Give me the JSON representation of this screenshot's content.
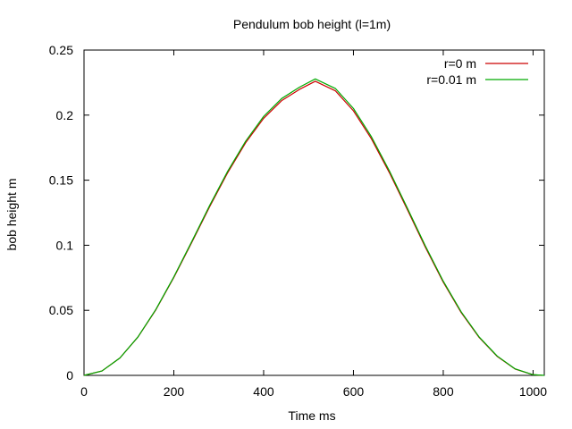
{
  "chart_data": {
    "type": "line",
    "title": "Pendulum bob height (l=1m)",
    "xlabel": "Time ms",
    "ylabel": "bob height m",
    "xlim": [
      0,
      1025
    ],
    "ylim": [
      0,
      0.25
    ],
    "x_ticks": [
      0,
      200,
      400,
      600,
      800,
      1000
    ],
    "y_ticks": [
      0,
      0.05,
      0.1,
      0.15,
      0.2,
      0.25
    ],
    "y_tick_labels": [
      "0",
      "0.05",
      "0.1",
      "0.15",
      "0.2",
      "0.25"
    ],
    "grid": false,
    "legend_position": "top-right",
    "series": [
      {
        "name": "r=0 m",
        "color": "#cc0000",
        "x": [
          0,
          40,
          80,
          120,
          160,
          200,
          240,
          280,
          320,
          360,
          400,
          440,
          480,
          515,
          560,
          600,
          640,
          680,
          720,
          760,
          800,
          840,
          880,
          920,
          960,
          1000,
          1020
        ],
        "y": [
          0,
          0.0034,
          0.0134,
          0.0294,
          0.0504,
          0.0752,
          0.1022,
          0.1297,
          0.1558,
          0.1788,
          0.1975,
          0.2111,
          0.2198,
          0.226,
          0.2186,
          0.2033,
          0.1818,
          0.1558,
          0.1274,
          0.0986,
          0.0716,
          0.0482,
          0.0291,
          0.0146,
          0.0049,
          0.0005,
          0
        ]
      },
      {
        "name": "r=0.01 m",
        "color": "#00aa00",
        "x": [
          0,
          40,
          80,
          120,
          160,
          200,
          240,
          280,
          320,
          360,
          400,
          440,
          480,
          515,
          560,
          600,
          640,
          680,
          720,
          760,
          800,
          840,
          880,
          920,
          960,
          1000,
          1025
        ],
        "y": [
          0,
          0.0034,
          0.0134,
          0.0295,
          0.0507,
          0.0757,
          0.1029,
          0.1307,
          0.1569,
          0.18,
          0.199,
          0.2127,
          0.2215,
          0.2278,
          0.2204,
          0.2051,
          0.1834,
          0.1572,
          0.1286,
          0.0996,
          0.0724,
          0.0488,
          0.0295,
          0.0149,
          0.005,
          0.0005,
          0
        ]
      }
    ]
  }
}
